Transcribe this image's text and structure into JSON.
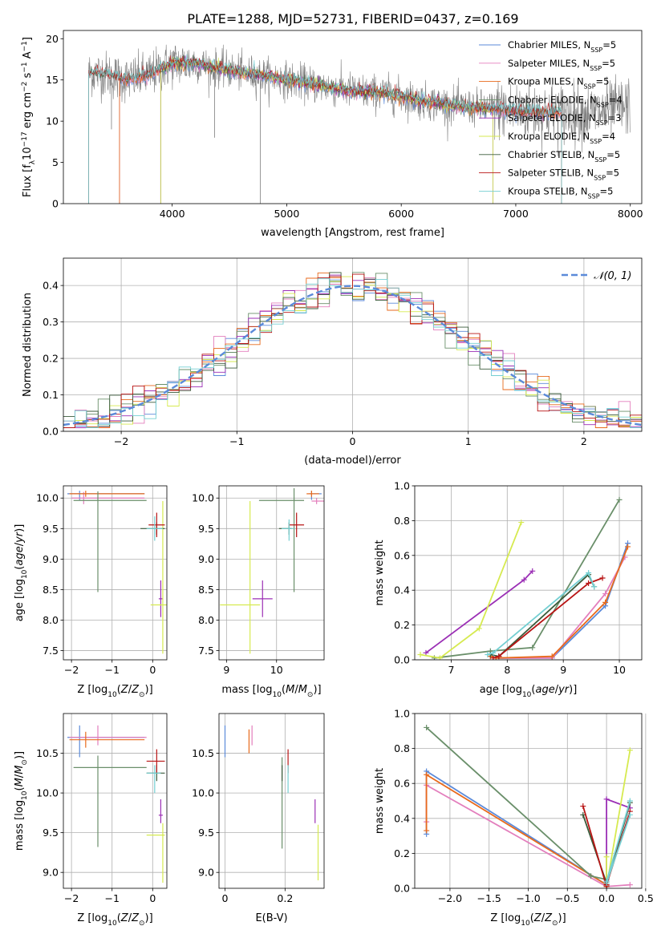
{
  "figure_title": "PLATE=1288, MJD=52731, FIBERID=0437, z=0.169",
  "colors": {
    "Chabrier MILES": "#5b8ad9",
    "Salpeter MILES": "#e37fbd",
    "Kroupa MILES": "#e86a1c",
    "Chabrier ELODIE": "#6a8f6a",
    "Salpeter ELODIE": "#9b2fb5",
    "Kroupa ELODIE": "#d6ea50",
    "Chabrier STELIB": "#3a5a3a",
    "Salpeter STELIB": "#b81414",
    "Kroupa STELIB": "#74cfd2",
    "data": "#7f7f7f",
    "normal": "#5b8ad9"
  },
  "chart_data": [
    {
      "id": "spectrum",
      "type": "line",
      "xlabel": "wavelength [Angstrom, rest frame]",
      "ylabel": "Flux [f_λ 10^-17 erg cm^-2 s^-1 A^-1]",
      "xlim": [
        3050,
        8100
      ],
      "ylim": [
        0,
        21
      ],
      "xticks": [
        4000,
        5000,
        6000,
        7000,
        8000
      ],
      "yticks": [
        0,
        5,
        10,
        15,
        20
      ],
      "legend": "right",
      "legend_entries": [
        {
          "name": "Chabrier MILES",
          "nssp": "5"
        },
        {
          "name": "Salpeter MILES",
          "nssp": "5"
        },
        {
          "name": "Kroupa MILES",
          "nssp": "5"
        },
        {
          "name": "Chabrier ELODIE",
          "nssp": "4"
        },
        {
          "name": "Salpeter ELODIE",
          "nssp": "3"
        },
        {
          "name": "Kroupa ELODIE",
          "nssp": "4"
        },
        {
          "name": "Chabrier STELIB",
          "nssp": "5"
        },
        {
          "name": "Salpeter STELIB",
          "nssp": "5"
        },
        {
          "name": "Kroupa STELIB",
          "nssp": "5"
        }
      ],
      "data_profile": {
        "x": [
          3270,
          3400,
          3600,
          3800,
          4000,
          4200,
          4400,
          4600,
          4800,
          5000,
          5300,
          5600,
          5900,
          6200,
          6500,
          6800,
          7100,
          7400,
          7600,
          7800,
          8000
        ],
        "y": [
          15.8,
          15.8,
          15.0,
          15.6,
          17.0,
          17.0,
          16.4,
          15.9,
          15.5,
          15.0,
          14.3,
          13.6,
          13.3,
          12.4,
          11.8,
          11.5,
          11.2,
          11.0,
          10.9,
          11.2,
          11.9
        ]
      },
      "model_ranges": [
        {
          "name": "Chabrier MILES",
          "x_range": [
            3540,
            7400
          ]
        },
        {
          "name": "Salpeter MILES",
          "x_range": [
            3540,
            7400
          ]
        },
        {
          "name": "Kroupa MILES",
          "x_range": [
            3540,
            7400
          ]
        },
        {
          "name": "Chabrier ELODIE",
          "x_range": [
            3900,
            6800
          ]
        },
        {
          "name": "Salpeter ELODIE",
          "x_range": [
            3900,
            6800
          ]
        },
        {
          "name": "Kroupa ELODIE",
          "x_range": [
            3900,
            6800
          ]
        },
        {
          "name": "Chabrier STELIB",
          "x_range": [
            3270,
            7400
          ]
        },
        {
          "name": "Salpeter STELIB",
          "x_range": [
            3270,
            7400
          ]
        },
        {
          "name": "Kroupa STELIB",
          "x_range": [
            3270,
            7400
          ]
        }
      ]
    },
    {
      "id": "residuals",
      "type": "histogram",
      "xlabel": "(data-model)/error",
      "ylabel": "Normed distribution",
      "xlim": [
        -2.5,
        2.5
      ],
      "ylim": [
        0,
        0.475
      ],
      "xticks": [
        -2,
        -1,
        0,
        1,
        2
      ],
      "yticks": [
        0.0,
        0.1,
        0.2,
        0.3,
        0.4
      ],
      "grid": true,
      "legend": "top-right",
      "legend_label": "𝒩(0, 1)",
      "bin_width": 0.1,
      "bin_start": -2.5
    },
    {
      "id": "age_vs_Z",
      "type": "errorbar",
      "xlabel": "Z [log10(Z/Z⊙)]",
      "ylabel": "age [log10(age/yr)]",
      "xlim": [
        -2.2,
        0.35
      ],
      "ylim": [
        7.35,
        10.2
      ],
      "xticks": [
        -2,
        -1,
        0
      ],
      "yticks": [
        7.5,
        8.0,
        8.5,
        9.0,
        9.5,
        10.0
      ],
      "grid": true,
      "points": [
        {
          "name": "Chabrier MILES",
          "x": -1.8,
          "xerr": [
            0.3,
            1.6
          ],
          "y": 10.07,
          "yerr": [
            0.1,
            0.05
          ]
        },
        {
          "name": "Salpeter MILES",
          "x": -1.7,
          "xerr": [
            0.3,
            1.5
          ],
          "y": 10.0,
          "yerr": [
            0.1,
            0.1
          ]
        },
        {
          "name": "Kroupa MILES",
          "x": -1.65,
          "xerr": [
            0.4,
            1.45
          ],
          "y": 10.07,
          "yerr": [
            0.05,
            0.05
          ]
        },
        {
          "name": "Chabrier ELODIE",
          "x": -1.35,
          "xerr": [
            0.6,
            1.2
          ],
          "y": 9.96,
          "yerr": [
            1.5,
            0.15
          ]
        },
        {
          "name": "Salpeter ELODIE",
          "x": 0.2,
          "xerr": [
            0.05,
            0.05
          ],
          "y": 8.35,
          "yerr": [
            0.3,
            0.3
          ]
        },
        {
          "name": "Kroupa ELODIE",
          "x": 0.25,
          "xerr": [
            0.3,
            0.1
          ],
          "y": 8.25,
          "yerr": [
            0.8,
            1.7
          ]
        },
        {
          "name": "Chabrier STELIB",
          "x": 0.1,
          "xerr": [
            0.4,
            0.2
          ],
          "y": 9.5,
          "yerr": [
            0.1,
            0.1
          ]
        },
        {
          "name": "Salpeter STELIB",
          "x": 0.1,
          "xerr": [
            0.2,
            0.2
          ],
          "y": 9.56,
          "yerr": [
            0.2,
            0.2
          ]
        },
        {
          "name": "Kroupa STELIB",
          "x": 0.05,
          "xerr": [
            0.2,
            0.2
          ],
          "y": 9.5,
          "yerr": [
            0.2,
            0.2
          ]
        }
      ]
    },
    {
      "id": "age_vs_mass",
      "type": "errorbar",
      "xlabel": "mass [log10(M/M⊙)]",
      "ylabel": "",
      "xlim": [
        8.85,
        10.95
      ],
      "ylim": [
        7.35,
        10.2
      ],
      "xticks": [
        9,
        10
      ],
      "yticks": [
        7.5,
        8.0,
        8.5,
        9.0,
        9.5,
        10.0
      ],
      "grid": true,
      "points": [
        {
          "name": "Chabrier MILES",
          "x": 10.7,
          "xerr": [
            0.05,
            0.2
          ],
          "y": 10.07,
          "yerr": [
            0.1,
            0.05
          ]
        },
        {
          "name": "Salpeter MILES",
          "x": 10.8,
          "xerr": [
            0.1,
            0.15
          ],
          "y": 9.95,
          "yerr": [
            0.05,
            0.05
          ]
        },
        {
          "name": "Kroupa MILES",
          "x": 10.7,
          "xerr": [
            0.1,
            0.15
          ],
          "y": 10.07,
          "yerr": [
            0.05,
            0.05
          ]
        },
        {
          "name": "Chabrier ELODIE",
          "x": 10.35,
          "xerr": [
            0.7,
            0.2
          ],
          "y": 9.96,
          "yerr": [
            1.5,
            0.2
          ]
        },
        {
          "name": "Salpeter ELODIE",
          "x": 9.72,
          "xerr": [
            0.2,
            0.2
          ],
          "y": 8.35,
          "yerr": [
            0.3,
            0.3
          ]
        },
        {
          "name": "Kroupa ELODIE",
          "x": 9.47,
          "xerr": [
            0.6,
            0.2
          ],
          "y": 8.25,
          "yerr": [
            0.8,
            1.7
          ]
        },
        {
          "name": "Chabrier STELIB",
          "x": 10.25,
          "xerr": [
            0.2,
            0.05
          ],
          "y": 9.5,
          "yerr": [
            0.1,
            0.1
          ]
        },
        {
          "name": "Salpeter STELIB",
          "x": 10.4,
          "xerr": [
            0.15,
            0.15
          ],
          "y": 9.56,
          "yerr": [
            0.2,
            0.2
          ]
        },
        {
          "name": "Kroupa STELIB",
          "x": 10.25,
          "xerr": [
            0.15,
            0.1
          ],
          "y": 9.5,
          "yerr": [
            0.2,
            0.15
          ]
        }
      ]
    },
    {
      "id": "weight_vs_age",
      "type": "line",
      "xlabel": "age [log10(age/yr)]",
      "ylabel": "mass weight",
      "xlim": [
        6.35,
        10.4
      ],
      "ylim": [
        0,
        1.0
      ],
      "xticks": [
        7,
        8,
        9,
        10
      ],
      "yticks": [
        0.0,
        0.2,
        0.4,
        0.6,
        0.8,
        1.0
      ],
      "grid": true,
      "series": [
        {
          "name": "Chabrier MILES",
          "x": [
            7.7,
            7.8,
            8.8,
            9.75,
            10.15
          ],
          "y": [
            0.02,
            0.01,
            0.01,
            0.31,
            0.67
          ]
        },
        {
          "name": "Salpeter MILES",
          "x": [
            7.7,
            7.8,
            8.8,
            9.75,
            10.1
          ],
          "y": [
            0.02,
            0.01,
            0.01,
            0.38,
            0.59
          ]
        },
        {
          "name": "Kroupa MILES",
          "x": [
            7.7,
            7.8,
            8.8,
            9.75,
            10.15
          ],
          "y": [
            0.02,
            0.01,
            0.02,
            0.33,
            0.65
          ]
        },
        {
          "name": "Chabrier ELODIE",
          "x": [
            6.7,
            7.7,
            8.45,
            10.0
          ],
          "y": [
            0.01,
            0.05,
            0.07,
            0.92
          ]
        },
        {
          "name": "Salpeter ELODIE",
          "x": [
            6.55,
            8.3,
            8.45
          ],
          "y": [
            0.04,
            0.46,
            0.51
          ]
        },
        {
          "name": "Kroupa ELODIE",
          "x": [
            6.45,
            6.8,
            7.5,
            8.25
          ],
          "y": [
            0.03,
            0.01,
            0.18,
            0.79
          ]
        },
        {
          "name": "Chabrier STELIB",
          "x": [
            7.7,
            7.85,
            9.45,
            9.55
          ],
          "y": [
            0.03,
            0.02,
            0.49,
            0.42
          ]
        },
        {
          "name": "Salpeter STELIB",
          "x": [
            7.75,
            7.85,
            9.45,
            9.7
          ],
          "y": [
            0.01,
            0.02,
            0.44,
            0.47
          ]
        },
        {
          "name": "Kroupa STELIB",
          "x": [
            7.65,
            7.75,
            9.45,
            9.55
          ],
          "y": [
            0.03,
            0.04,
            0.5,
            0.42
          ]
        }
      ]
    },
    {
      "id": "mass_vs_Z",
      "type": "errorbar",
      "xlabel": "Z [log10(Z/Z⊙)]",
      "ylabel": "mass [log10(M/M⊙)]",
      "xlim": [
        -2.2,
        0.35
      ],
      "ylim": [
        8.8,
        11.0
      ],
      "xticks": [
        -2,
        -1,
        0
      ],
      "yticks": [
        9.0,
        9.5,
        10.0,
        10.5
      ],
      "grid": true,
      "points": [
        {
          "name": "Chabrier MILES",
          "x": -1.8,
          "xerr": [
            0.3,
            1.6
          ],
          "y": 10.7,
          "yerr": [
            0.25,
            0.15
          ]
        },
        {
          "name": "Salpeter MILES",
          "x": -1.35,
          "xerr": [
            0.7,
            1.2
          ],
          "y": 10.7,
          "yerr": [
            0.1,
            0.15
          ]
        },
        {
          "name": "Kroupa MILES",
          "x": -1.65,
          "xerr": [
            0.4,
            1.45
          ],
          "y": 10.67,
          "yerr": [
            0.1,
            0.1
          ]
        },
        {
          "name": "Chabrier ELODIE",
          "x": -1.35,
          "xerr": [
            0.6,
            1.2
          ],
          "y": 10.32,
          "yerr": [
            1.0,
            0.15
          ]
        },
        {
          "name": "Salpeter ELODIE",
          "x": 0.2,
          "xerr": [
            0.05,
            0.05
          ],
          "y": 9.72,
          "yerr": [
            0.1,
            0.2
          ]
        },
        {
          "name": "Kroupa ELODIE",
          "x": 0.25,
          "xerr": [
            0.4,
            0.05
          ],
          "y": 9.47,
          "yerr": [
            0.6,
            0.15
          ]
        },
        {
          "name": "Chabrier STELIB",
          "x": 0.1,
          "xerr": [
            0.25,
            0.2
          ],
          "y": 10.25,
          "yerr": [
            0.1,
            0.1
          ]
        },
        {
          "name": "Salpeter STELIB",
          "x": 0.1,
          "xerr": [
            0.25,
            0.2
          ],
          "y": 10.4,
          "yerr": [
            0.15,
            0.15
          ]
        },
        {
          "name": "Kroupa STELIB",
          "x": 0.05,
          "xerr": [
            0.2,
            0.15
          ],
          "y": 10.25,
          "yerr": [
            0.25,
            0.1
          ]
        }
      ]
    },
    {
      "id": "mass_vs_EBV",
      "type": "errorbar",
      "xlabel": "E(B-V)",
      "ylabel": "",
      "xlim": [
        -0.02,
        0.33
      ],
      "ylim": [
        8.8,
        11.0
      ],
      "xticks": [
        0.0,
        0.2
      ],
      "yticks": [
        9.0,
        9.5,
        10.0,
        10.5
      ],
      "grid": true,
      "points": [
        {
          "name": "Chabrier MILES",
          "x": 0.0,
          "xerr": [
            0,
            0
          ],
          "y": 10.7,
          "yerr": [
            0.25,
            0.15
          ]
        },
        {
          "name": "Salpeter MILES",
          "x": 0.09,
          "xerr": [
            0,
            0
          ],
          "y": 10.7,
          "yerr": [
            0.1,
            0.15
          ]
        },
        {
          "name": "Kroupa MILES",
          "x": 0.08,
          "xerr": [
            0,
            0
          ],
          "y": 10.65,
          "yerr": [
            0.15,
            0.15
          ]
        },
        {
          "name": "Chabrier ELODIE",
          "x": 0.19,
          "xerr": [
            0,
            0
          ],
          "y": 10.3,
          "yerr": [
            1.0,
            0.15
          ]
        },
        {
          "name": "Salpeter ELODIE",
          "x": 0.3,
          "xerr": [
            0,
            0
          ],
          "y": 9.72,
          "yerr": [
            0.1,
            0.2
          ]
        },
        {
          "name": "Kroupa ELODIE",
          "x": 0.31,
          "xerr": [
            0,
            0
          ],
          "y": 9.25,
          "yerr": [
            0.35,
            0.35
          ]
        },
        {
          "name": "Chabrier STELIB",
          "x": 0.19,
          "xerr": [
            0,
            0
          ],
          "y": 10.25,
          "yerr": [
            0.1,
            0.1
          ]
        },
        {
          "name": "Salpeter STELIB",
          "x": 0.21,
          "xerr": [
            0,
            0
          ],
          "y": 10.4,
          "yerr": [
            0.15,
            0.15
          ]
        },
        {
          "name": "Kroupa STELIB",
          "x": 0.21,
          "xerr": [
            0,
            0
          ],
          "y": 10.25,
          "yerr": [
            0.25,
            0.1
          ]
        }
      ]
    },
    {
      "id": "weight_vs_Z",
      "type": "line",
      "xlabel": "Z [log10(Z/Z⊙)]",
      "ylabel": "mass weight",
      "xlim": [
        -2.45,
        0.45
      ],
      "ylim": [
        0,
        1.0
      ],
      "xticks": [
        -2.0,
        -1.5,
        -1.0,
        -0.5,
        0.0,
        0.5
      ],
      "xticklabels": [
        "−2.0",
        "−1.5",
        "−1.0",
        "−0.5",
        "0.0",
        "0.5"
      ],
      "yticks": [
        0.0,
        0.2,
        0.4,
        0.6,
        0.8,
        1.0
      ],
      "grid": true,
      "series": [
        {
          "name": "Chabrier MILES",
          "x": [
            -2.3,
            -2.3,
            0.0,
            0.0,
            0.0
          ],
          "y": [
            0.31,
            0.67,
            0.02,
            0.01,
            0.01
          ]
        },
        {
          "name": "Salpeter MILES",
          "x": [
            -2.3,
            -2.3,
            0.0,
            0.0,
            0.3
          ],
          "y": [
            0.38,
            0.59,
            0.01,
            0.01,
            0.02
          ]
        },
        {
          "name": "Kroupa MILES",
          "x": [
            -2.3,
            -2.3,
            0.0,
            0.0,
            0.0
          ],
          "y": [
            0.33,
            0.65,
            0.02,
            0.01,
            0.02
          ]
        },
        {
          "name": "Chabrier ELODIE",
          "x": [
            -2.3,
            -0.2,
            0.0,
            0.0
          ],
          "y": [
            0.92,
            0.07,
            0.05,
            0.01
          ]
        },
        {
          "name": "Salpeter ELODIE",
          "x": [
            0.0,
            0.0,
            0.3
          ],
          "y": [
            0.04,
            0.51,
            0.46
          ]
        },
        {
          "name": "Kroupa ELODIE",
          "x": [
            0.0,
            0.0,
            0.0,
            0.3
          ],
          "y": [
            0.03,
            0.18,
            0.01,
            0.79
          ]
        },
        {
          "name": "Chabrier STELIB",
          "x": [
            -0.3,
            0.0,
            0.0,
            0.3
          ],
          "y": [
            0.42,
            0.03,
            0.02,
            0.49
          ]
        },
        {
          "name": "Salpeter STELIB",
          "x": [
            -0.3,
            0.0,
            0.0,
            0.3
          ],
          "y": [
            0.47,
            0.01,
            0.02,
            0.44
          ]
        },
        {
          "name": "Kroupa STELIB",
          "x": [
            0.3,
            0.0,
            0.0,
            0.3
          ],
          "y": [
            0.42,
            0.03,
            0.04,
            0.5
          ]
        }
      ]
    }
  ]
}
